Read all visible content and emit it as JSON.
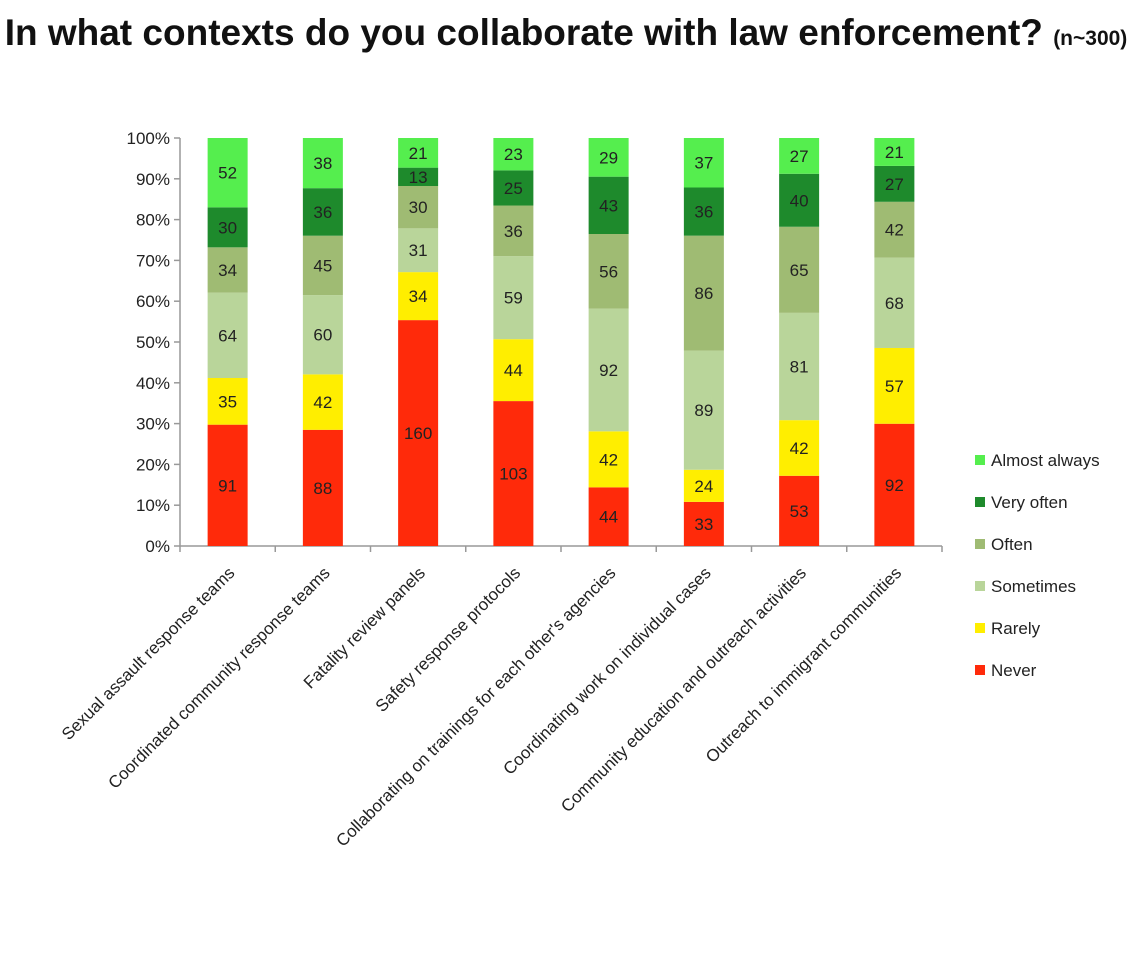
{
  "chart_data": {
    "type": "bar",
    "stacked": "percent",
    "title": "In what contexts do you collaborate with law enforcement?",
    "subtitle": "(n~300)",
    "xlabel": "",
    "ylabel": "",
    "ylim": [
      0,
      100
    ],
    "y_ticks": [
      "0%",
      "10%",
      "20%",
      "30%",
      "40%",
      "50%",
      "60%",
      "70%",
      "80%",
      "90%",
      "100%"
    ],
    "grid": false,
    "legend_position": "right",
    "categories": [
      "Sexual assault response teams",
      "Coordinated community response teams",
      "Fatality review panels",
      "Safety response protocols",
      "Collaborating on trainings for each other's agencies",
      "Coordinating work on individual cases",
      "Community education and outreach activities",
      "Outreach to immigrant communities"
    ],
    "series": [
      {
        "name": "Never",
        "color": "#ff2a0a",
        "values": [
          91,
          88,
          160,
          103,
          44,
          33,
          53,
          92
        ]
      },
      {
        "name": "Rarely",
        "color": "#ffee00",
        "values": [
          35,
          42,
          34,
          44,
          42,
          24,
          42,
          57
        ]
      },
      {
        "name": "Sometimes",
        "color": "#b9d59a",
        "values": [
          64,
          60,
          31,
          59,
          92,
          89,
          81,
          68
        ]
      },
      {
        "name": "Often",
        "color": "#9fbb73",
        "values": [
          34,
          45,
          30,
          36,
          56,
          86,
          65,
          42
        ]
      },
      {
        "name": "Very often",
        "color": "#1e8a2c",
        "values": [
          30,
          36,
          13,
          25,
          43,
          36,
          40,
          27
        ]
      },
      {
        "name": "Almost always",
        "color": "#55ee4e",
        "values": [
          52,
          38,
          21,
          23,
          29,
          37,
          27,
          21
        ]
      }
    ]
  }
}
